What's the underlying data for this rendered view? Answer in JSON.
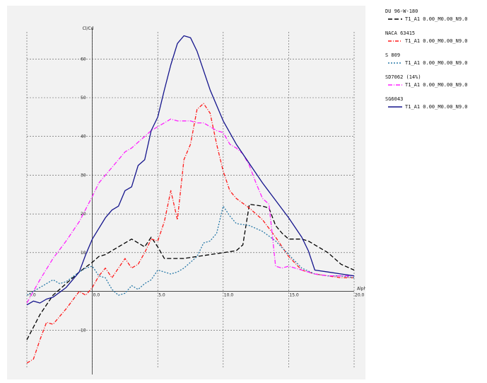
{
  "chart_data": {
    "type": "line",
    "title": "",
    "ylabel": "Cl/Cd",
    "xlabel": "Alpha",
    "xlim": [
      -5,
      20
    ],
    "ylim": [
      -20,
      67
    ],
    "x_ticks": [
      "-5.0",
      "0.0",
      "5.0",
      "10.0",
      "15.0",
      "20.0"
    ],
    "y_ticks": [
      "-10",
      "10",
      "20",
      "30",
      "40",
      "50",
      "60"
    ],
    "grid": true,
    "legend_position": "right",
    "series": [
      {
        "name": "DU 96-W-180",
        "run": "T1_A1 0.00_M0.00_N9.0",
        "color": "#000000",
        "dash": "6,3",
        "x": [
          -5.0,
          -4.0,
          -3.0,
          -2.0,
          -1.0,
          0.0,
          0.5,
          1.0,
          2.0,
          3.0,
          4.0,
          4.5,
          5.0,
          5.5,
          6.0,
          7.0,
          8.0,
          9.0,
          10.0,
          11.0,
          11.5,
          12.0,
          13.0,
          13.5,
          14.0,
          14.5,
          15.0,
          16.0,
          16.5,
          17.0,
          18.0,
          19.0,
          20.0
        ],
        "y": [
          -12.5,
          -6.0,
          -1.0,
          2.0,
          5.0,
          7.5,
          9.0,
          9.5,
          11.5,
          13.5,
          11.5,
          14.0,
          11.5,
          8.5,
          8.5,
          8.5,
          9.0,
          9.5,
          10.0,
          10.5,
          12.0,
          22.5,
          22.0,
          21.5,
          17.0,
          15.0,
          13.5,
          13.5,
          13.0,
          12.0,
          10.0,
          7.0,
          5.5
        ]
      },
      {
        "name": "NACA 63415",
        "run": "T1_A1 0.00_M0.00_N9.0",
        "color": "#ff1a1a",
        "dash": "5,2,1,2",
        "x": [
          -5.0,
          -4.5,
          -4.0,
          -3.5,
          -3.0,
          -2.5,
          -2.0,
          -1.0,
          -0.5,
          0.0,
          0.5,
          1.0,
          1.5,
          2.0,
          2.5,
          3.0,
          3.5,
          4.0,
          4.5,
          5.0,
          5.5,
          6.0,
          6.5,
          7.0,
          7.5,
          8.0,
          8.5,
          9.0,
          9.5,
          10.0,
          10.5,
          11.0,
          12.0,
          13.0,
          14.0,
          15.0,
          16.0,
          17.0,
          18.0,
          19.0,
          20.0
        ],
        "y": [
          -18.5,
          -17.5,
          -12.5,
          -8.0,
          -8.5,
          -6.5,
          -4.5,
          0.0,
          -1.0,
          1.0,
          4.0,
          6.0,
          3.5,
          6.0,
          8.5,
          6.0,
          7.0,
          10.0,
          13.5,
          13.0,
          18.0,
          26.0,
          18.5,
          34.0,
          38.0,
          47.0,
          48.5,
          46.0,
          38.0,
          31.0,
          26.0,
          24.0,
          21.5,
          18.5,
          14.0,
          9.0,
          5.5,
          4.5,
          4.0,
          3.5,
          3.5
        ]
      },
      {
        "name": "S 809",
        "run": "T1_A1 0.00_M0.00_N9.0",
        "color": "#2a7aa8",
        "dash": "2,2",
        "x": [
          -5.0,
          -4.0,
          -3.0,
          -2.5,
          -2.0,
          -1.0,
          -0.5,
          0.0,
          0.5,
          1.0,
          1.5,
          2.0,
          2.5,
          3.0,
          3.5,
          4.0,
          4.5,
          5.0,
          5.5,
          6.0,
          6.5,
          7.0,
          7.5,
          8.0,
          8.5,
          9.0,
          9.5,
          10.0,
          10.5,
          11.0,
          12.0,
          13.0,
          14.0,
          15.0,
          16.0,
          17.0,
          18.0,
          19.0,
          20.0
        ],
        "y": [
          -1.0,
          1.0,
          3.0,
          2.0,
          2.5,
          5.0,
          6.0,
          6.5,
          4.0,
          3.5,
          0.5,
          -1.0,
          -0.5,
          1.5,
          0.5,
          2.0,
          3.0,
          5.5,
          5.0,
          4.5,
          5.0,
          6.0,
          7.5,
          9.0,
          12.5,
          13.0,
          15.0,
          22.0,
          19.5,
          17.5,
          17.0,
          15.5,
          13.0,
          9.5,
          6.0,
          4.5,
          4.0,
          4.0,
          3.5
        ]
      },
      {
        "name": "SD7062 (14%)",
        "run": "T1_A1 0.00_M0.00_N9.0",
        "color": "#ff22ff",
        "dash": "6,2,1,2",
        "x": [
          -5.0,
          -4.0,
          -3.0,
          -2.0,
          -1.0,
          0.0,
          0.5,
          1.0,
          1.5,
          2.0,
          2.5,
          3.0,
          3.5,
          4.0,
          4.5,
          5.0,
          5.5,
          6.0,
          6.5,
          7.0,
          7.5,
          8.0,
          8.5,
          9.0,
          9.5,
          10.0,
          10.5,
          11.0,
          11.5,
          12.0,
          12.5,
          13.0,
          13.5,
          14.0,
          14.5,
          15.0,
          15.5,
          16.0,
          17.0,
          18.0,
          19.0,
          20.0
        ],
        "y": [
          -3.0,
          3.0,
          8.5,
          13.0,
          18.0,
          24.5,
          28.0,
          30.0,
          32.0,
          34.0,
          36.0,
          37.0,
          38.5,
          40.0,
          41.5,
          42.5,
          43.5,
          44.5,
          44.0,
          44.0,
          44.0,
          43.5,
          43.5,
          42.5,
          41.5,
          41.0,
          38.0,
          37.0,
          35.5,
          32.5,
          28.0,
          24.0,
          22.5,
          6.5,
          6.0,
          6.5,
          6.0,
          5.5,
          4.5,
          4.0,
          4.0,
          4.0
        ]
      },
      {
        "name": "SG6043",
        "run": "T1_A1 0.00_M0.00_N9.0",
        "color": "#14148c",
        "dash": "",
        "x": [
          -5.0,
          -4.5,
          -4.0,
          -3.5,
          -3.0,
          -2.0,
          -1.0,
          -0.5,
          0.0,
          1.0,
          1.5,
          2.0,
          2.5,
          3.0,
          3.5,
          4.0,
          4.5,
          5.0,
          5.5,
          6.0,
          6.5,
          7.0,
          7.5,
          8.0,
          9.0,
          10.0,
          11.0,
          12.0,
          13.0,
          14.0,
          15.0,
          16.0,
          16.5,
          17.0,
          18.0,
          19.0,
          20.0
        ],
        "y": [
          -3.5,
          -2.5,
          -3.0,
          -2.0,
          -1.5,
          1.0,
          5.0,
          9.5,
          13.5,
          19.0,
          21.0,
          22.0,
          26.0,
          27.0,
          32.5,
          34.0,
          41.5,
          45.0,
          52.0,
          58.5,
          64.0,
          66.0,
          65.5,
          62.0,
          52.0,
          44.0,
          38.0,
          33.0,
          28.0,
          23.5,
          19.0,
          14.0,
          10.5,
          5.5,
          5.0,
          4.5,
          4.0
        ]
      }
    ]
  }
}
